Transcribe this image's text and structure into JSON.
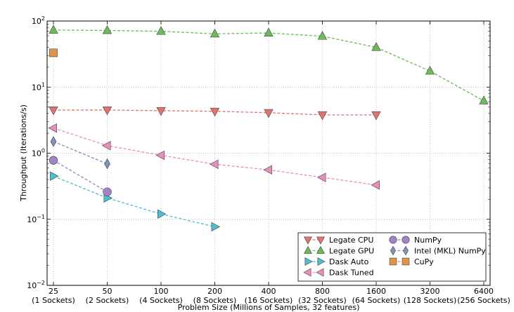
{
  "chart_data": {
    "type": "line",
    "xlabel": "Problem Size (Millions of Samples, 32 features)",
    "ylabel": "Throughput (Iterations/s)",
    "ylim": [
      0.01,
      100
    ],
    "yscale": "log",
    "grid": true,
    "legend_position": "bottom-right",
    "categories": [
      "25",
      "50",
      "100",
      "200",
      "400",
      "800",
      "1600",
      "3200",
      "6400"
    ],
    "category_sublabels": [
      "(1 Sockets)",
      "(2 Sockets)",
      "(4 Sockets)",
      "(8 Sockets)",
      "(16 Sockets)",
      "(32 Sockets)",
      "(64 Sockets)",
      "(128 Sockets)",
      "(256 Sockets)"
    ],
    "y_ticks": [
      {
        "value": 0.01,
        "mantissa": "10",
        "exp": "−2"
      },
      {
        "value": 0.1,
        "mantissa": "10",
        "exp": "−1"
      },
      {
        "value": 1,
        "mantissa": "10",
        "exp": "0"
      },
      {
        "value": 10,
        "mantissa": "10",
        "exp": "1"
      },
      {
        "value": 100,
        "mantissa": "10",
        "exp": "2"
      }
    ],
    "series": [
      {
        "name": "Legate CPU",
        "marker": "triangle-down",
        "color": "#e07470",
        "values": [
          4.5,
          4.5,
          4.4,
          4.3,
          4.1,
          3.8,
          3.8,
          null,
          null
        ]
      },
      {
        "name": "Legate GPU",
        "marker": "triangle-up",
        "color": "#6cba5a",
        "values": [
          73,
          72,
          70,
          64,
          66,
          59,
          40,
          17.5,
          6.2
        ]
      },
      {
        "name": "Dask Auto",
        "marker": "triangle-right",
        "color": "#4cc0cf",
        "values": [
          0.45,
          0.21,
          0.12,
          0.077,
          null,
          null,
          null,
          null,
          null
        ]
      },
      {
        "name": "Dask Tuned",
        "marker": "triangle-left",
        "color": "#e98dbb",
        "values": [
          2.4,
          1.3,
          0.93,
          0.68,
          0.56,
          0.43,
          0.33,
          null,
          null
        ]
      },
      {
        "name": "NumPy",
        "marker": "circle",
        "color": "#a283c8",
        "values": [
          0.78,
          0.26,
          null,
          null,
          null,
          null,
          null,
          null,
          null
        ]
      },
      {
        "name": "Intel (MKL) NumPy",
        "marker": "diamond",
        "color": "#7f94b5",
        "values": [
          1.5,
          0.69,
          null,
          null,
          null,
          null,
          null,
          null,
          null
        ]
      },
      {
        "name": "CuPy",
        "marker": "square",
        "color": "#e0954a",
        "values": [
          33,
          null,
          null,
          null,
          null,
          null,
          null,
          null,
          null
        ]
      }
    ]
  }
}
